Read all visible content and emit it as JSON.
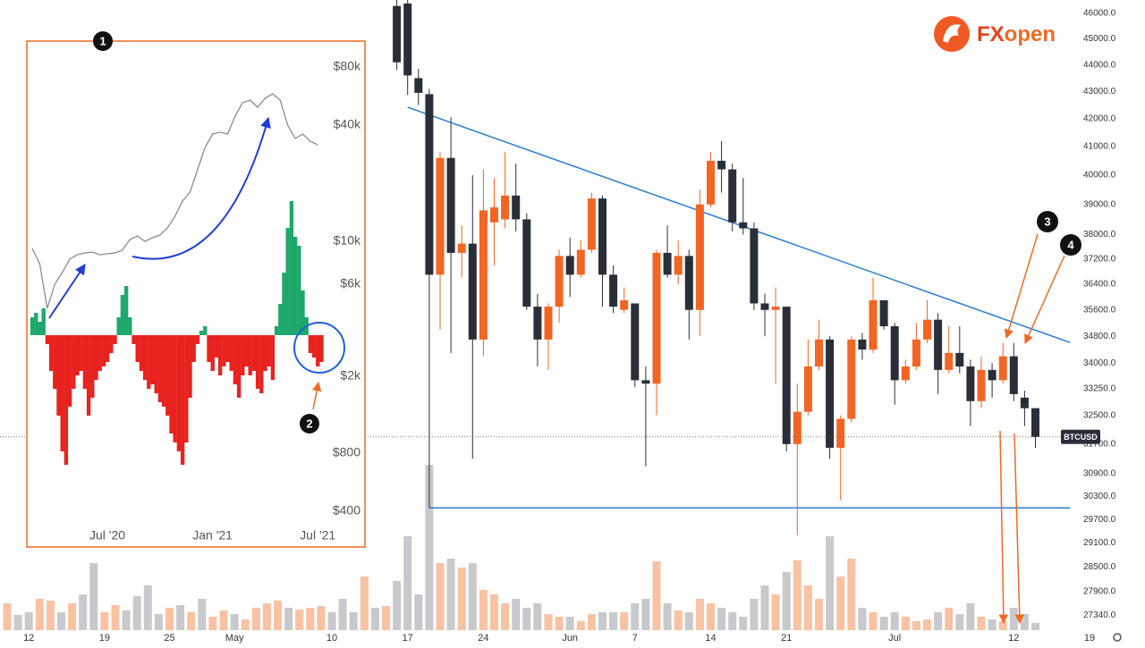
{
  "chart_data": [
    {
      "type": "candlestick",
      "log_scale": true,
      "categories": [
        null,
        null,
        "12",
        null,
        null,
        null,
        null,
        null,
        null,
        "19",
        null,
        null,
        null,
        null,
        null,
        "25",
        null,
        null,
        null,
        null,
        null,
        "May",
        null,
        null,
        null,
        null,
        null,
        null,
        null,
        null,
        "10",
        null,
        null,
        null,
        null,
        null,
        null,
        "17",
        null,
        null,
        null,
        null,
        null,
        null,
        "24",
        null,
        null,
        null,
        null,
        null,
        null,
        null,
        "Jun",
        null,
        null,
        null,
        null,
        null,
        "7",
        null,
        null,
        null,
        null,
        null,
        null,
        "14",
        null,
        null,
        null,
        null,
        null,
        null,
        "21",
        null,
        null,
        null,
        null,
        null,
        null,
        null,
        null,
        null,
        "Jul",
        null,
        null,
        null,
        null,
        null,
        null,
        null,
        null,
        null,
        null,
        "12",
        null,
        null,
        null,
        null,
        null,
        null,
        "19"
      ],
      "open": [
        null,
        null,
        null,
        null,
        null,
        null,
        null,
        null,
        null,
        null,
        null,
        null,
        null,
        null,
        null,
        null,
        null,
        null,
        null,
        null,
        null,
        null,
        null,
        null,
        null,
        null,
        null,
        null,
        null,
        null,
        null,
        null,
        null,
        null,
        null,
        null,
        46300,
        46400,
        43500,
        42900,
        36700,
        40600,
        37400,
        37700,
        34700,
        38400,
        38500,
        39300,
        38500,
        35700,
        34700,
        35700,
        37300,
        36700,
        37500,
        39200,
        36700,
        35600,
        35800,
        33500,
        33400,
        37400,
        36700,
        37300,
        35600,
        39000,
        40500,
        40200,
        38400,
        38200,
        35800,
        35600,
        35700,
        31700,
        32600,
        33900,
        34700,
        31600,
        32400,
        34700,
        34400,
        35900,
        35100,
        33500,
        33900,
        34700,
        35300,
        33800,
        34300,
        33900,
        32900,
        33800,
        33500,
        34200,
        33000,
        32700,
        null,
        null,
        null,
        null,
        null
      ],
      "high": [
        null,
        null,
        null,
        null,
        null,
        null,
        null,
        null,
        null,
        null,
        null,
        null,
        null,
        null,
        null,
        null,
        null,
        null,
        null,
        null,
        null,
        null,
        null,
        null,
        null,
        null,
        null,
        null,
        null,
        null,
        null,
        null,
        null,
        null,
        null,
        null,
        46600,
        46700,
        43850,
        43100,
        40800,
        42050,
        38300,
        40000,
        40200,
        39900,
        40800,
        40400,
        38700,
        36100,
        35800,
        37500,
        37900,
        37800,
        39400,
        39300,
        37000,
        36300,
        35800,
        33900,
        37500,
        38300,
        37800,
        37500,
        39500,
        40800,
        41200,
        40400,
        39900,
        38400,
        36100,
        36300,
        35700,
        33400,
        34700,
        35300,
        34800,
        32500,
        34800,
        34900,
        36600,
        35900,
        35200,
        34100,
        35200,
        35900,
        35500,
        35100,
        35100,
        34100,
        34200,
        34000,
        34600,
        34600,
        33200,
        32700,
        null,
        null,
        null,
        null,
        null
      ],
      "low": [
        null,
        null,
        null,
        null,
        null,
        null,
        null,
        null,
        null,
        null,
        null,
        null,
        null,
        null,
        null,
        null,
        null,
        null,
        null,
        null,
        null,
        null,
        null,
        null,
        null,
        null,
        null,
        null,
        null,
        null,
        null,
        null,
        null,
        null,
        null,
        null,
        43800,
        42870,
        42500,
        30000,
        35000,
        34300,
        36600,
        31300,
        34200,
        37000,
        38200,
        38100,
        35600,
        33900,
        33800,
        35200,
        36000,
        36600,
        37400,
        35700,
        35500,
        35500,
        33300,
        31100,
        32500,
        36600,
        36400,
        34700,
        34800,
        38900,
        39400,
        38100,
        38000,
        35600,
        34800,
        33400,
        31500,
        29300,
        32500,
        33800,
        31300,
        30200,
        32300,
        34100,
        34300,
        35000,
        32800,
        33400,
        33800,
        34600,
        33100,
        33700,
        33700,
        32200,
        32700,
        33000,
        33400,
        32900,
        32200,
        31600,
        null,
        null,
        null,
        null,
        null
      ],
      "close": [
        null,
        null,
        null,
        null,
        null,
        null,
        null,
        null,
        null,
        null,
        null,
        null,
        null,
        null,
        null,
        null,
        null,
        null,
        null,
        null,
        null,
        null,
        null,
        null,
        null,
        null,
        null,
        null,
        null,
        null,
        null,
        null,
        null,
        null,
        null,
        null,
        44100,
        43600,
        42950,
        36700,
        40600,
        37400,
        37700,
        34700,
        38800,
        38900,
        39300,
        38500,
        35700,
        34700,
        35700,
        37300,
        36700,
        37500,
        39200,
        36700,
        35700,
        35900,
        33500,
        33400,
        37400,
        36700,
        37300,
        35600,
        39000,
        40500,
        40200,
        38400,
        38200,
        35800,
        35600,
        35700,
        31700,
        32600,
        33900,
        34700,
        31600,
        32400,
        34700,
        34400,
        35900,
        35100,
        33500,
        33900,
        34700,
        35300,
        33800,
        34300,
        33900,
        32900,
        33800,
        33500,
        34200,
        33100,
        32700,
        31900,
        null,
        null,
        null,
        null,
        null
      ],
      "up_color": "#f26522",
      "down_color": "#2a2e39",
      "volume_up": {
        "color": "#f9c2a3",
        "values": [
          30,
          null,
          null,
          35,
          33,
          null,
          30,
          null,
          null,
          20,
          28,
          null,
          null,
          null,
          null,
          25,
          null,
          20,
          null,
          15,
          22,
          null,
          12,
          25,
          30,
          33,
          null,
          23,
          25,
          27,
          null,
          null,
          null,
          60,
          null,
          27,
          null,
          null,
          null,
          null,
          75,
          null,
          70,
          null,
          45,
          40,
          30,
          null,
          null,
          null,
          18,
          15,
          null,
          10,
          18,
          null,
          null,
          20,
          null,
          null,
          77,
          null,
          22,
          null,
          35,
          30,
          null,
          null,
          null,
          null,
          null,
          40,
          null,
          78,
          50,
          35,
          null,
          60,
          80,
          null,
          20,
          null,
          null,
          15,
          10,
          12,
          null,
          25,
          null,
          null,
          15,
          null,
          10,
          null,
          null,
          null,
          null,
          null,
          null,
          null,
          null
        ]
      },
      "volume_down": {
        "color": "#c8c9cd",
        "values": [
          null,
          17,
          20,
          null,
          null,
          20,
          null,
          40,
          75,
          null,
          null,
          22,
          38,
          50,
          18,
          null,
          28,
          null,
          35,
          null,
          null,
          18,
          null,
          null,
          null,
          null,
          25,
          null,
          null,
          null,
          20,
          35,
          20,
          null,
          25,
          null,
          55,
          105,
          40,
          185,
          null,
          80,
          null,
          75,
          null,
          null,
          null,
          35,
          25,
          30,
          null,
          null,
          15,
          null,
          null,
          20,
          20,
          null,
          30,
          35,
          null,
          30,
          null,
          20,
          null,
          null,
          25,
          20,
          15,
          35,
          50,
          null,
          65,
          null,
          null,
          null,
          105,
          null,
          null,
          25,
          null,
          15,
          20,
          null,
          null,
          null,
          20,
          null,
          18,
          30,
          null,
          12,
          null,
          25,
          18,
          8,
          null,
          null,
          null,
          null,
          null
        ]
      },
      "ylim": [
        26990,
        46540
      ],
      "yticks": [
        {
          "value": 46000,
          "label": "46000.0"
        },
        {
          "value": 45000,
          "label": "45000.0"
        },
        {
          "value": 44000,
          "label": "44000.0"
        },
        {
          "value": 43000,
          "label": "43000.0"
        },
        {
          "value": 42000,
          "label": "42000.0"
        },
        {
          "value": 41000,
          "label": "41000.0"
        },
        {
          "value": 40000,
          "label": "40000.0"
        },
        {
          "value": 39000,
          "label": "39000.0"
        },
        {
          "value": 38000,
          "label": "38000.0"
        },
        {
          "value": 37200,
          "label": "37200.0"
        },
        {
          "value": 36400,
          "label": "36400.0"
        },
        {
          "value": 35600,
          "label": "35600.0"
        },
        {
          "value": 34800,
          "label": "34800.0"
        },
        {
          "value": 34000,
          "label": "34000.0"
        },
        {
          "value": 33250,
          "label": "33250.0"
        },
        {
          "value": 32500,
          "label": "32500.0"
        },
        {
          "value": 31700,
          "label": "31700.0"
        },
        {
          "value": 30900,
          "label": "30900.0"
        },
        {
          "value": 30300,
          "label": "30300.0"
        },
        {
          "value": 29700,
          "label": "29700.0"
        },
        {
          "value": 29100,
          "label": "29100.0"
        },
        {
          "value": 28500,
          "label": "28500.0"
        },
        {
          "value": 27900,
          "label": "27900.0"
        },
        {
          "value": 27340,
          "label": "27340.0"
        }
      ],
      "lines": [
        {
          "x": [
            37,
            98.2
          ],
          "y": [
            42420,
            34610
          ],
          "color": "#2a7fd4"
        },
        {
          "x": [
            39,
            98.2
          ],
          "y": [
            30000,
            30000
          ],
          "color": "#2a7fd4"
        }
      ],
      "last_price_label": "BTCUSD"
    },
    {
      "type": "line",
      "log_scale": true,
      "categories": [
        null,
        null,
        null,
        null,
        null,
        null,
        null,
        null,
        null,
        null,
        "Jul '20",
        null,
        null,
        null,
        null,
        null,
        null,
        null,
        null,
        null,
        null,
        null,
        null,
        null,
        "Jan '21",
        null,
        null,
        null,
        null,
        null,
        null,
        null,
        null,
        null,
        null,
        null,
        null,
        null,
        "Jul '21"
      ],
      "values": [
        9180,
        7660,
        4490,
        5990,
        6890,
        8080,
        8520,
        8710,
        8800,
        8520,
        8610,
        8710,
        8990,
        10220,
        10660,
        10000,
        10440,
        10770,
        11730,
        13480,
        16160,
        17980,
        23460,
        30640,
        35950,
        36740,
        35950,
        44470,
        52260,
        53900,
        49500,
        55100,
        58100,
        53900,
        40000,
        34100,
        35950,
        33000,
        31600
      ],
      "color": "#8c8c8c",
      "histogram": {
        "up_color": "#1fa86b",
        "down_color": "#e8231f",
        "values": [
          20,
          25,
          15,
          30,
          -10,
          -40,
          -60,
          -90,
          -130,
          -145,
          -80,
          -60,
          -45,
          -40,
          -60,
          -90,
          -70,
          -50,
          -40,
          -35,
          -30,
          -20,
          -10,
          20,
          45,
          55,
          20,
          -10,
          -30,
          -40,
          -50,
          -60,
          -55,
          -65,
          -75,
          -80,
          -90,
          -110,
          -120,
          -130,
          -145,
          -120,
          -70,
          -30,
          -10,
          5,
          10,
          -30,
          -40,
          -25,
          -45,
          -35,
          -30,
          -40,
          -55,
          -70,
          -45,
          -35,
          -45,
          -40,
          -60,
          -65,
          -40,
          -35,
          -50,
          10,
          35,
          70,
          120,
          150,
          110,
          100,
          50,
          20,
          -20,
          -25,
          -35,
          -30
        ]
      },
      "ylim": [
        261,
        108900
      ],
      "yticks": [
        {
          "value": 80000,
          "label": "$80k"
        },
        {
          "value": 40000,
          "label": "$40k"
        },
        {
          "value": 10000,
          "label": "$10k"
        },
        {
          "value": 6000,
          "label": "$6k"
        },
        {
          "value": 2000,
          "label": "$2k"
        },
        {
          "value": 800,
          "label": "$800"
        },
        {
          "value": 400,
          "label": "$400"
        }
      ]
    }
  ],
  "callouts": [
    "1",
    "2",
    "3",
    "4"
  ],
  "logo": {
    "parts": [
      "FX",
      "open"
    ]
  }
}
